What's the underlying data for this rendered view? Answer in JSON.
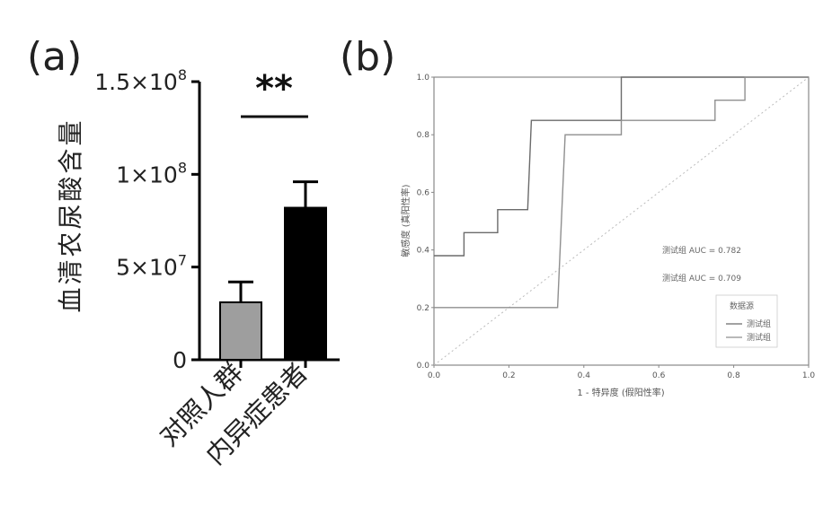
{
  "panels": {
    "a_label": "(a)",
    "b_label": "(b)"
  },
  "chart_data": [
    {
      "type": "bar",
      "panel": "(a)",
      "ylabel": "血清农尿酸含量",
      "categories": [
        "对照人群",
        "内异症患者"
      ],
      "values": [
        31000000,
        82000000
      ],
      "error": [
        11000000,
        14000000
      ],
      "bar_colors": [
        "#9e9e9e",
        "#000000"
      ],
      "ylim": [
        0,
        150000000
      ],
      "yticks": [
        {
          "value": 0,
          "label": "0"
        },
        {
          "value": 50000000,
          "label": "5×10",
          "exp": "7"
        },
        {
          "value": 100000000,
          "label": "1×10",
          "exp": "8"
        },
        {
          "value": 150000000,
          "label": "1.5×10",
          "exp": "8"
        }
      ],
      "significance": "**"
    },
    {
      "type": "line",
      "panel": "(b)",
      "xlabel": "1 - 特异度 (假阳性率)",
      "ylabel": "敏感度 (真阳性率)",
      "xlim": [
        0,
        1
      ],
      "ylim": [
        0,
        1
      ],
      "xticks": [
        "0.0",
        "0.2",
        "0.4",
        "0.6",
        "0.8",
        "1.0"
      ],
      "yticks": [
        "0.0",
        "0.2",
        "0.4",
        "0.6",
        "0.8",
        "1.0"
      ],
      "series": [
        {
          "name": "测试组 AUC = 0.782",
          "color": "#6b6b6b",
          "points": [
            [
              0,
              0.38
            ],
            [
              0.08,
              0.38
            ],
            [
              0.08,
              0.46
            ],
            [
              0.17,
              0.46
            ],
            [
              0.17,
              0.54
            ],
            [
              0.25,
              0.54
            ],
            [
              0.26,
              0.85
            ],
            [
              0.5,
              0.85
            ],
            [
              0.5,
              1.0
            ],
            [
              1.0,
              1.0
            ]
          ]
        },
        {
          "name": "测试组 AUC = 0.709",
          "color": "#8f8f8f",
          "points": [
            [
              0,
              0.2
            ],
            [
              0.33,
              0.2
            ],
            [
              0.35,
              0.8
            ],
            [
              0.5,
              0.8
            ],
            [
              0.5,
              0.85
            ],
            [
              0.75,
              0.85
            ],
            [
              0.75,
              0.92
            ],
            [
              0.83,
              0.92
            ],
            [
              0.83,
              1.0
            ],
            [
              1.0,
              1.0
            ]
          ]
        }
      ],
      "reference_line": true,
      "legend_title": "数据源",
      "legend_items": [
        "测试组",
        "测试组"
      ],
      "legend_position": "bottom-right"
    }
  ]
}
